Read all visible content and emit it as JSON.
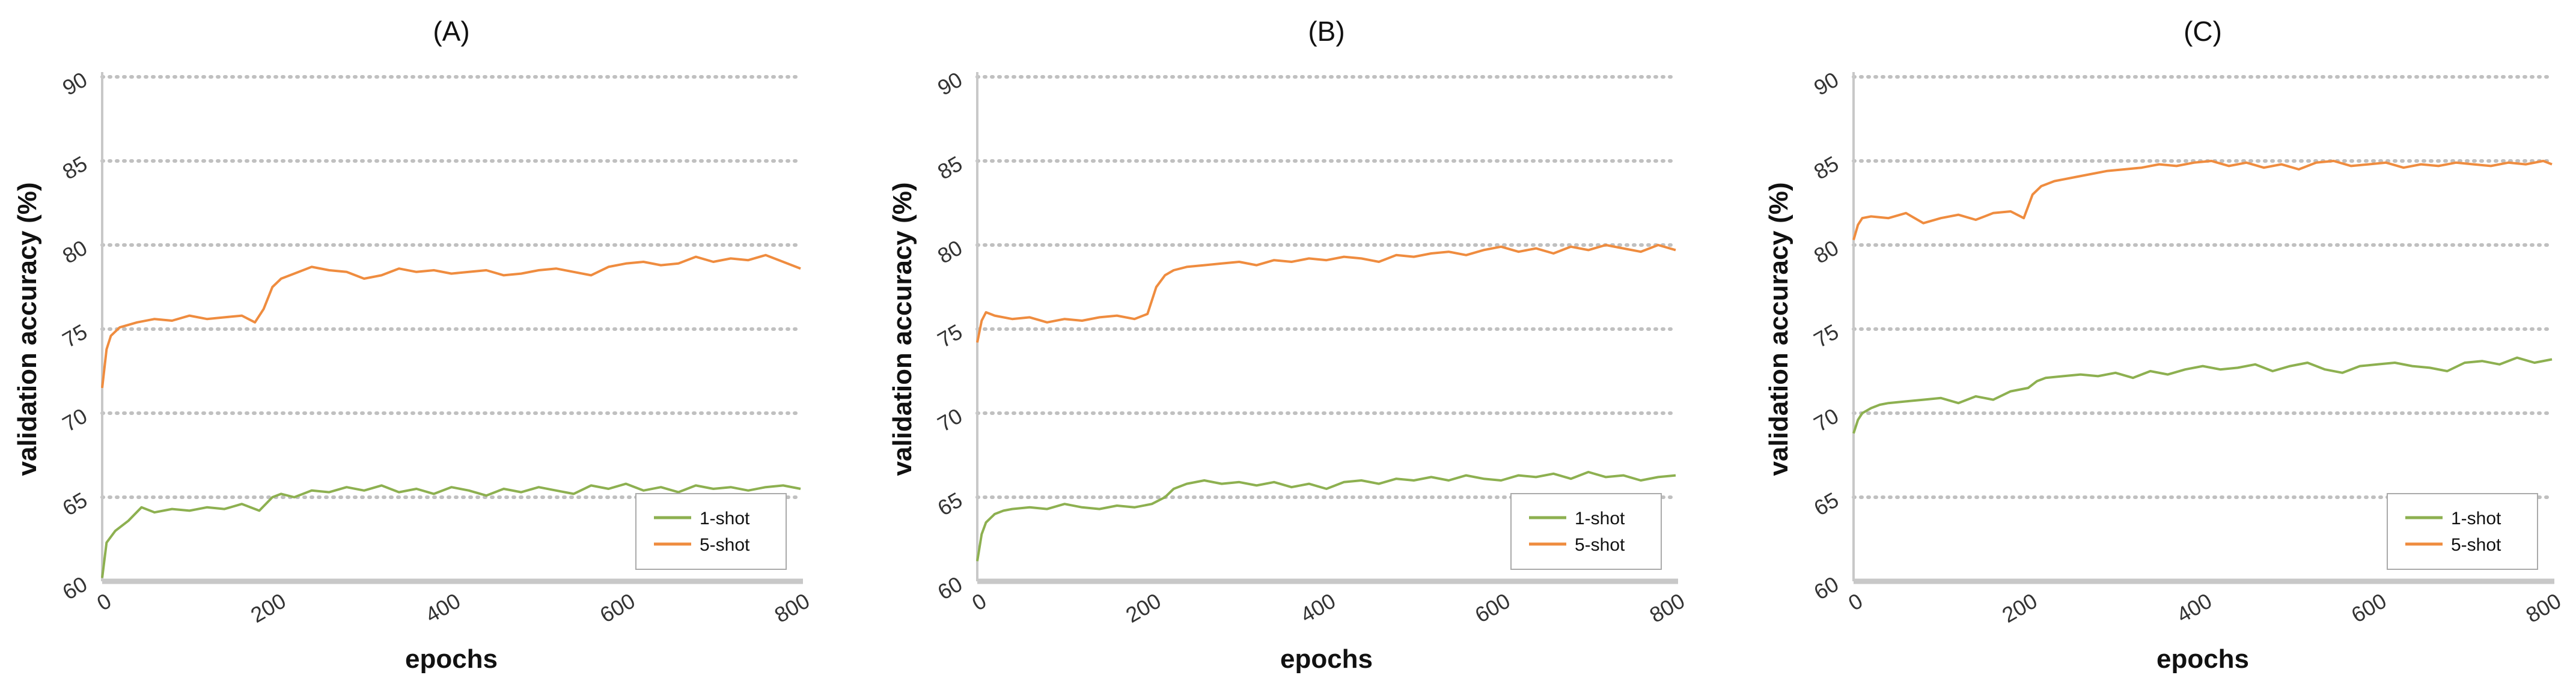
{
  "colors": {
    "one_shot": "#8db050",
    "five_shot": "#ef8c3f",
    "grid": "#c0c0c0",
    "axis": "#c8c8c8"
  },
  "chart_data": [
    {
      "type": "line",
      "title": "(A)",
      "xlabel": "epochs",
      "ylabel": "validation accuracy (%)",
      "xlim": [
        0,
        800
      ],
      "ylim": [
        60,
        90
      ],
      "xticks": [
        "0",
        "200",
        "400",
        "600",
        "800"
      ],
      "yticks": [
        "60",
        "65",
        "70",
        "75",
        "80",
        "85",
        "90"
      ],
      "grid": "horizontal dotted",
      "legend_position": "bottom-right",
      "series": [
        {
          "name": "1-shot",
          "x": [
            0,
            5,
            15,
            30,
            45,
            60,
            80,
            100,
            120,
            140,
            160,
            180,
            195,
            205,
            220,
            240,
            260,
            280,
            300,
            320,
            340,
            360,
            380,
            400,
            420,
            440,
            460,
            480,
            500,
            520,
            540,
            560,
            580,
            600,
            620,
            640,
            660,
            680,
            700,
            720,
            740,
            760,
            780,
            800
          ],
          "y": [
            60.2,
            62.3,
            63.0,
            63.6,
            64.4,
            64.1,
            64.3,
            64.2,
            64.4,
            64.3,
            64.6,
            64.2,
            65.0,
            65.2,
            65.0,
            65.4,
            65.3,
            65.6,
            65.4,
            65.7,
            65.3,
            65.5,
            65.2,
            65.6,
            65.4,
            65.1,
            65.5,
            65.3,
            65.6,
            65.4,
            65.2,
            65.7,
            65.5,
            65.8,
            65.4,
            65.6,
            65.3,
            65.7,
            65.5,
            65.6,
            65.4,
            65.6,
            65.7,
            65.5
          ]
        },
        {
          "name": "5-shot",
          "x": [
            0,
            5,
            10,
            20,
            40,
            60,
            80,
            100,
            120,
            140,
            160,
            175,
            185,
            195,
            205,
            220,
            240,
            260,
            280,
            300,
            320,
            340,
            360,
            380,
            400,
            420,
            440,
            460,
            480,
            500,
            520,
            540,
            560,
            580,
            600,
            620,
            640,
            660,
            680,
            700,
            720,
            740,
            760,
            780,
            800
          ],
          "y": [
            71.5,
            73.8,
            74.6,
            75.1,
            75.4,
            75.6,
            75.5,
            75.8,
            75.6,
            75.7,
            75.8,
            75.4,
            76.2,
            77.5,
            78.0,
            78.3,
            78.7,
            78.5,
            78.4,
            78.0,
            78.2,
            78.6,
            78.4,
            78.5,
            78.3,
            78.4,
            78.5,
            78.2,
            78.3,
            78.5,
            78.6,
            78.4,
            78.2,
            78.7,
            78.9,
            79.0,
            78.8,
            78.9,
            79.3,
            79.0,
            79.2,
            79.1,
            79.4,
            79.0,
            78.6
          ]
        }
      ]
    },
    {
      "type": "line",
      "title": "(B)",
      "xlabel": "epochs",
      "ylabel": "validation accuracy (%)",
      "xlim": [
        0,
        800
      ],
      "ylim": [
        60,
        90
      ],
      "xticks": [
        "0",
        "200",
        "400",
        "600",
        "800"
      ],
      "yticks": [
        "60",
        "65",
        "70",
        "75",
        "80",
        "85",
        "90"
      ],
      "grid": "horizontal dotted",
      "legend_position": "bottom-right",
      "series": [
        {
          "name": "1-shot",
          "x": [
            0,
            5,
            10,
            20,
            30,
            40,
            60,
            80,
            100,
            120,
            140,
            160,
            180,
            200,
            215,
            225,
            240,
            260,
            280,
            300,
            320,
            340,
            360,
            380,
            400,
            420,
            440,
            460,
            480,
            500,
            520,
            540,
            560,
            580,
            600,
            620,
            640,
            660,
            680,
            700,
            720,
            740,
            760,
            780,
            800
          ],
          "y": [
            61.2,
            62.8,
            63.5,
            64.0,
            64.2,
            64.3,
            64.4,
            64.3,
            64.6,
            64.4,
            64.3,
            64.5,
            64.4,
            64.6,
            65.0,
            65.5,
            65.8,
            66.0,
            65.8,
            65.9,
            65.7,
            65.9,
            65.6,
            65.8,
            65.5,
            65.9,
            66.0,
            65.8,
            66.1,
            66.0,
            66.2,
            66.0,
            66.3,
            66.1,
            66.0,
            66.3,
            66.2,
            66.4,
            66.1,
            66.5,
            66.2,
            66.3,
            66.0,
            66.2,
            66.3
          ]
        },
        {
          "name": "5-shot",
          "x": [
            0,
            5,
            10,
            20,
            40,
            60,
            80,
            100,
            120,
            140,
            160,
            180,
            195,
            205,
            215,
            225,
            240,
            260,
            280,
            300,
            320,
            340,
            360,
            380,
            400,
            420,
            440,
            460,
            480,
            500,
            520,
            540,
            560,
            580,
            600,
            620,
            640,
            660,
            680,
            700,
            720,
            740,
            760,
            780,
            800
          ],
          "y": [
            74.2,
            75.5,
            76.0,
            75.8,
            75.6,
            75.7,
            75.4,
            75.6,
            75.5,
            75.7,
            75.8,
            75.6,
            75.9,
            77.5,
            78.2,
            78.5,
            78.7,
            78.8,
            78.9,
            79.0,
            78.8,
            79.1,
            79.0,
            79.2,
            79.1,
            79.3,
            79.2,
            79.0,
            79.4,
            79.3,
            79.5,
            79.6,
            79.4,
            79.7,
            79.9,
            79.6,
            79.8,
            79.5,
            79.9,
            79.7,
            80.0,
            79.8,
            79.6,
            80.0,
            79.7
          ]
        }
      ]
    },
    {
      "type": "line",
      "title": "(C)",
      "xlabel": "epochs",
      "ylabel": "validation accuracy (%)",
      "xlim": [
        0,
        800
      ],
      "ylim": [
        60,
        90
      ],
      "xticks": [
        "0",
        "200",
        "400",
        "600",
        "800"
      ],
      "yticks": [
        "60",
        "65",
        "70",
        "75",
        "80",
        "85",
        "90"
      ],
      "grid": "horizontal dotted",
      "legend_position": "bottom-right",
      "series": [
        {
          "name": "1-shot",
          "x": [
            0,
            5,
            10,
            20,
            30,
            40,
            60,
            80,
            100,
            120,
            140,
            160,
            180,
            200,
            210,
            220,
            240,
            260,
            280,
            300,
            320,
            340,
            360,
            380,
            400,
            420,
            440,
            460,
            480,
            500,
            520,
            540,
            560,
            580,
            600,
            620,
            640,
            660,
            680,
            700,
            720,
            740,
            760,
            780,
            800
          ],
          "y": [
            68.8,
            69.6,
            70.0,
            70.3,
            70.5,
            70.6,
            70.7,
            70.8,
            70.9,
            70.6,
            71.0,
            70.8,
            71.3,
            71.5,
            71.9,
            72.1,
            72.2,
            72.3,
            72.2,
            72.4,
            72.1,
            72.5,
            72.3,
            72.6,
            72.8,
            72.6,
            72.7,
            72.9,
            72.5,
            72.8,
            73.0,
            72.6,
            72.4,
            72.8,
            72.9,
            73.0,
            72.8,
            72.7,
            72.5,
            73.0,
            73.1,
            72.9,
            73.3,
            73.0,
            73.2
          ]
        },
        {
          "name": "5-shot",
          "x": [
            0,
            5,
            10,
            20,
            40,
            60,
            80,
            100,
            120,
            140,
            160,
            180,
            195,
            205,
            215,
            230,
            250,
            270,
            290,
            310,
            330,
            350,
            370,
            390,
            410,
            430,
            450,
            470,
            490,
            510,
            530,
            550,
            570,
            590,
            610,
            630,
            650,
            670,
            690,
            710,
            730,
            750,
            770,
            790,
            800
          ],
          "y": [
            80.3,
            81.2,
            81.6,
            81.7,
            81.6,
            81.9,
            81.3,
            81.6,
            81.8,
            81.5,
            81.9,
            82.0,
            81.6,
            83.0,
            83.5,
            83.8,
            84.0,
            84.2,
            84.4,
            84.5,
            84.6,
            84.8,
            84.7,
            84.9,
            85.0,
            84.7,
            84.9,
            84.6,
            84.8,
            84.5,
            84.9,
            85.0,
            84.7,
            84.8,
            84.9,
            84.6,
            84.8,
            84.7,
            84.9,
            84.8,
            84.7,
            84.9,
            84.8,
            85.0,
            84.8
          ]
        }
      ]
    }
  ]
}
